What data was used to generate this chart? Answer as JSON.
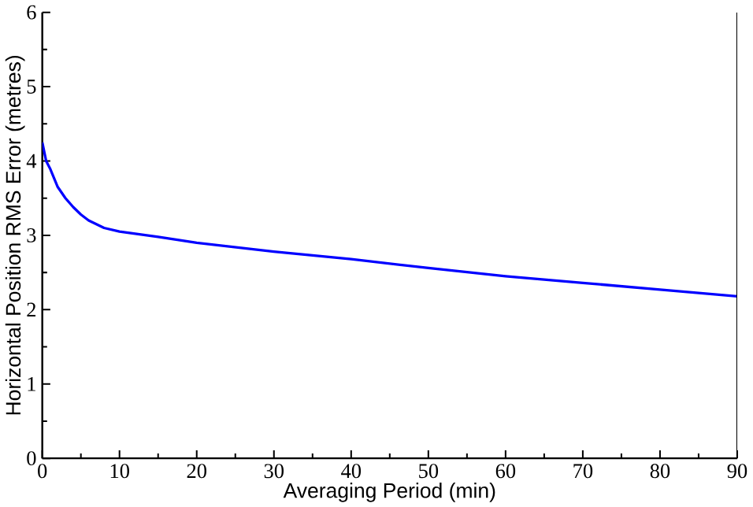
{
  "chart_data": {
    "type": "line",
    "xlabel": "Averaging Period (min)",
    "ylabel": "Horizontal Position RMS Error (metres)",
    "x": [
      0,
      0.5,
      1,
      2,
      3,
      4,
      5,
      6,
      8,
      10,
      15,
      20,
      30,
      40,
      50,
      60,
      70,
      80,
      90
    ],
    "series": [
      {
        "color": "#0000ff",
        "values": [
          4.25,
          4.0,
          3.9,
          3.65,
          3.5,
          3.38,
          3.28,
          3.2,
          3.1,
          3.05,
          2.98,
          2.9,
          2.78,
          2.68,
          2.56,
          2.45,
          2.36,
          2.27,
          2.18
        ]
      }
    ],
    "xlim": [
      0,
      90
    ],
    "ylim": [
      0,
      6
    ],
    "xticks": [
      0,
      10,
      20,
      30,
      40,
      50,
      60,
      70,
      80,
      90
    ],
    "yticks": [
      0,
      1,
      2,
      3,
      4,
      5,
      6
    ],
    "grid": false,
    "marker": "none",
    "line_style": "solid"
  }
}
